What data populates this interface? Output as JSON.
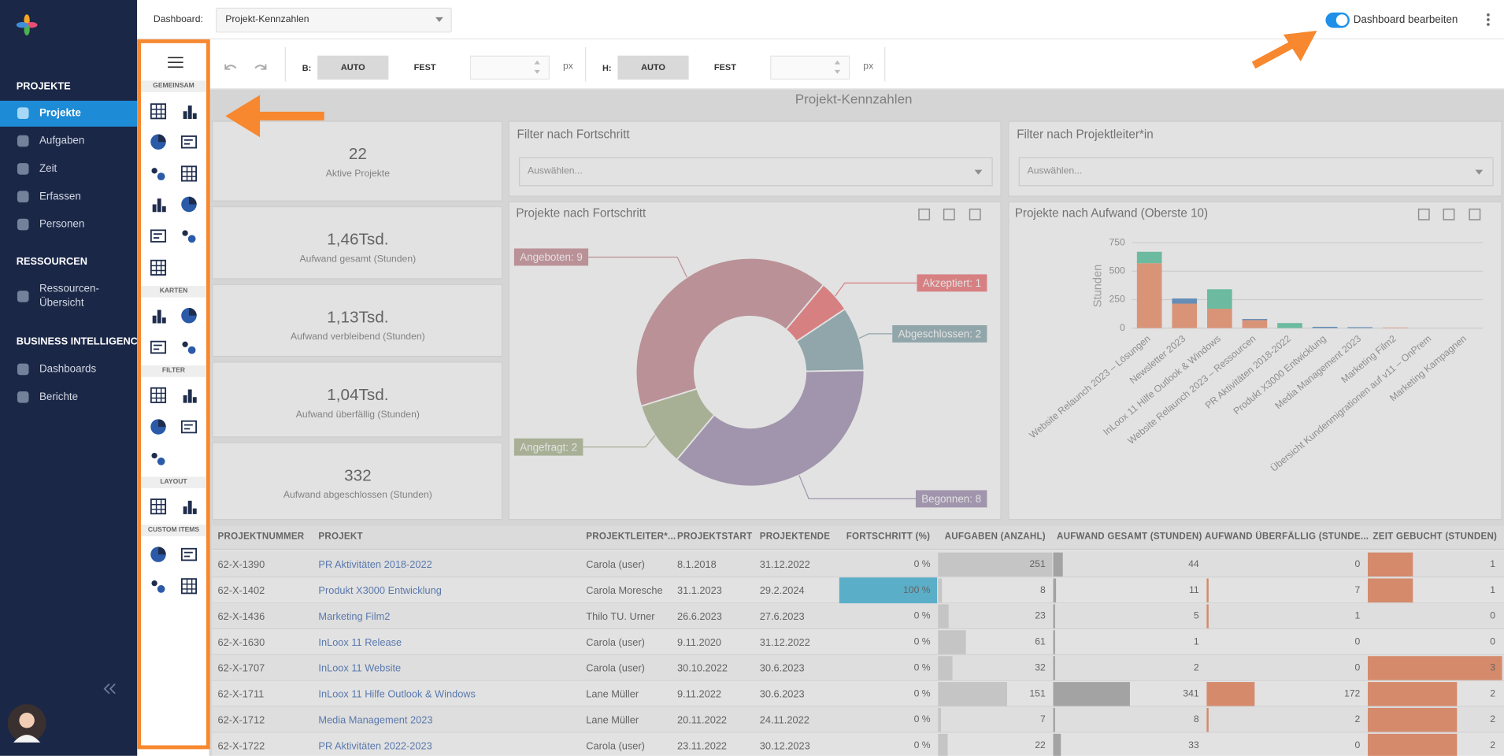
{
  "sidebar": {
    "sections": [
      {
        "title": "PROJEKTE",
        "items": [
          "Projekte",
          "Aufgaben",
          "Zeit",
          "Erfassen",
          "Personen"
        ]
      },
      {
        "title": "RESSOURCEN",
        "items": [
          "Ressourcen-Übersicht"
        ]
      },
      {
        "title": "BUSINESS INTELLIGENCE",
        "items": [
          "Dashboards",
          "Berichte"
        ]
      }
    ]
  },
  "topbar": {
    "dashboard_label": "Dashboard:",
    "dashboard_select": "Projekt-Kennzahlen",
    "edit_toggle": "Dashboard bearbeiten"
  },
  "toolbar": {
    "width": {
      "label": "B:",
      "auto": "AUTO",
      "fixed": "FEST",
      "unit": "px"
    },
    "height": {
      "label": "H:",
      "auto": "AUTO",
      "fixed": "FEST",
      "unit": "px"
    }
  },
  "palette": {
    "groups": [
      "GEMEINSAM",
      "KARTEN",
      "FILTER",
      "LAYOUT",
      "CUSTOM ITEMS"
    ]
  },
  "dashboard": {
    "title": "Projekt-Kennzahlen",
    "cards": [
      {
        "value": "22",
        "label": "Aktive Projekte"
      },
      {
        "value": "1,46Tsd.",
        "label": "Aufwand gesamt (Stunden)"
      },
      {
        "value": "1,13Tsd.",
        "label": "Aufwand verbleibend (Stunden)"
      },
      {
        "value": "1,04Tsd.",
        "label": "Aufwand überfällig (Stunden)"
      },
      {
        "value": "332",
        "label": "Aufwand abgeschlossen (Stunden)"
      }
    ],
    "filters": [
      {
        "title": "Filter nach Fortschritt",
        "placeholder": "Auswählen..."
      },
      {
        "title": "Filter nach Projektleiter*in",
        "placeholder": "Auswählen..."
      }
    ]
  },
  "chart_data": [
    {
      "type": "pie",
      "donut": true,
      "title": "Projekte nach Fortschritt",
      "values": [
        1,
        2,
        8,
        2,
        9
      ],
      "value_labels": [
        "Akzeptiert: 1",
        "Abgeschlossen: 2",
        "Begonnen: 8",
        "Angefragt: 2",
        "Angeboten: 9"
      ],
      "colors": [
        "#f2888a",
        "#9db6bc",
        "#afa1be",
        "#b8c3a2",
        "#cf9da4"
      ]
    },
    {
      "type": "bar",
      "stacked": true,
      "title": "Projekte nach Aufwand (Oberste 10)",
      "y_label": "Stunden",
      "categories": [
        "Website Relaunch 2023 – Lösungen",
        "Newsletter 2023",
        "InLoox 11 Hilfe Outlook & Windows",
        "Website Relaunch 2023 – Ressourcen",
        "PR Aktivitäten 2018-2022",
        "Produkt X3000 Entwicklung",
        "Media Management 2023",
        "Marketing Film2",
        "Übersicht Kundenmigrationen auf v11 – OnPrem",
        "Marketing Kampagnen"
      ],
      "series": [
        {
          "color": "#f4a07e",
          "values": [
            570,
            215,
            170,
            70,
            0,
            0,
            0,
            5,
            0,
            0
          ]
        },
        {
          "color": "#6699cc",
          "values": [
            0,
            45,
            0,
            10,
            0,
            11,
            8,
            0,
            0,
            0
          ]
        },
        {
          "color": "#6fcfae",
          "values": [
            100,
            0,
            171,
            0,
            44,
            0,
            0,
            0,
            0,
            0
          ]
        }
      ],
      "ylim": [
        0,
        750
      ],
      "yticks": [
        0,
        250,
        500,
        750
      ],
      "grid": true
    }
  ],
  "table": {
    "columns": [
      "PROJEKTNUMMER",
      "PROJEKT",
      "PROJEKTLEITER*...",
      "PROJEKTSTART",
      "PROJEKTENDE",
      "FORTSCHRITT (%)",
      "AUFGABEN (ANZAHL)",
      "AUFWAND GESAMT (STUNDEN)",
      "AUFWAND ÜBERFÄLLIG (STUNDE...",
      "ZEIT GEBUCHT (STUNDEN)"
    ],
    "rows": [
      [
        "62-X-1390",
        "PR Aktivitäten 2018-2022",
        "Carola (user)",
        "8.1.2018",
        "31.12.2022",
        {
          "value": 0,
          "label": "0 %"
        },
        251,
        44,
        0,
        1
      ],
      [
        "62-X-1402",
        "Produkt X3000 Entwicklung",
        "Carola Moresche",
        "31.1.2023",
        "29.2.2024",
        {
          "value": 100,
          "label": "100 %"
        },
        8,
        11,
        7,
        1
      ],
      [
        "62-X-1436",
        "Marketing Film2",
        "Thilo TU. Urner",
        "26.6.2023",
        "27.6.2023",
        {
          "value": 0,
          "label": "0 %"
        },
        23,
        5,
        1,
        0
      ],
      [
        "62-X-1630",
        "InLoox 11 Release",
        "Carola (user)",
        "9.11.2020",
        "31.12.2022",
        {
          "value": 0,
          "label": "0 %"
        },
        61,
        1,
        0,
        0
      ],
      [
        "62-X-1707",
        "InLoox 11 Website",
        "Carola (user)",
        "30.10.2022",
        "30.6.2023",
        {
          "value": 0,
          "label": "0 %"
        },
        32,
        2,
        0,
        3
      ],
      [
        "62-X-1711",
        "InLoox 11 Hilfe Outlook & Windows",
        "Lane Müller",
        "9.11.2022",
        "30.6.2023",
        {
          "value": 0,
          "label": "0 %"
        },
        151,
        341,
        172,
        2
      ],
      [
        "62-X-1712",
        "Media Management 2023",
        "Lane Müller",
        "20.11.2022",
        "24.11.2022",
        {
          "value": 0,
          "label": "0 %"
        },
        7,
        8,
        2,
        2
      ],
      [
        "62-X-1722",
        "PR Aktivitäten 2022-2023",
        "Carola (user)",
        "23.11.2022",
        "30.12.2023",
        {
          "value": 0,
          "label": "0 %"
        },
        22,
        33,
        0,
        2
      ]
    ]
  }
}
